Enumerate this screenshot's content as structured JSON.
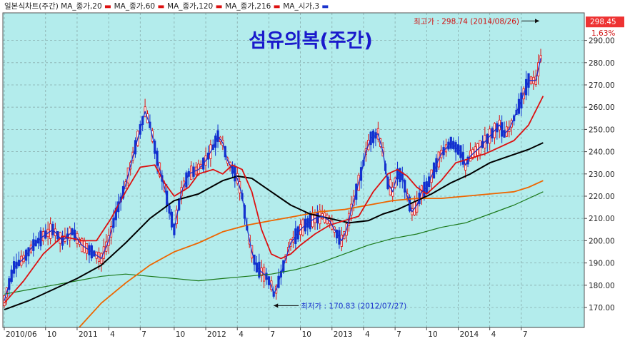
{
  "chart_data": {
    "type": "line",
    "title": "섬유의복(주간)",
    "legend": {
      "placement": "top-left",
      "prefix": "일본식차트(주간)",
      "items": [
        {
          "label": "MA_종가,20",
          "color": "#dd1111"
        },
        {
          "label": "MA_종가,60",
          "color": "#dd1111"
        },
        {
          "label": "MA_종가,120",
          "color": "#dd1111"
        },
        {
          "label": "MA_종가,216",
          "color": "#dd1111"
        },
        {
          "label": "MA_시가,3",
          "color": "#1a33cc"
        }
      ]
    },
    "x_ticks": [
      {
        "label": "2010/06",
        "t": 0
      },
      {
        "label": "10",
        "t": 17
      },
      {
        "label": "2011",
        "t": 30
      },
      {
        "label": "4",
        "t": 43
      },
      {
        "label": "7",
        "t": 56
      },
      {
        "label": "10",
        "t": 70
      },
      {
        "label": "2012",
        "t": 83
      },
      {
        "label": "4",
        "t": 96
      },
      {
        "label": "7",
        "t": 109
      },
      {
        "label": "10",
        "t": 122
      },
      {
        "label": "2013",
        "t": 135
      },
      {
        "label": "4",
        "t": 148
      },
      {
        "label": "7",
        "t": 161
      },
      {
        "label": "10",
        "t": 174
      },
      {
        "label": "2014",
        "t": 187
      },
      {
        "label": "4",
        "t": 200
      },
      {
        "label": "7",
        "t": 213
      }
    ],
    "y_ticks": [
      170,
      180,
      190,
      200,
      210,
      220,
      230,
      240,
      250,
      260,
      270,
      280,
      290
    ],
    "y_tick_labels": [
      "170.00",
      "180.00",
      "190.00",
      "200.00",
      "210.00",
      "220.00",
      "230.00",
      "240.00",
      "250.00",
      "260.00",
      "270.00",
      "280.00",
      "290.00"
    ],
    "ylim": [
      165,
      301
    ],
    "xlim": [
      0,
      236
    ],
    "grid": true,
    "series": [
      {
        "key": "ma3",
        "color": "#1a33cc",
        "width": 1.3,
        "points": [
          [
            0,
            173
          ],
          [
            4,
            188
          ],
          [
            8,
            192
          ],
          [
            12,
            198
          ],
          [
            16,
            202
          ],
          [
            20,
            205
          ],
          [
            24,
            200
          ],
          [
            28,
            204
          ],
          [
            32,
            198
          ],
          [
            36,
            195
          ],
          [
            40,
            192
          ],
          [
            43,
            200
          ],
          [
            46,
            212
          ],
          [
            50,
            225
          ],
          [
            53,
            238
          ],
          [
            56,
            250
          ],
          [
            58,
            258
          ],
          [
            60,
            252
          ],
          [
            62,
            242
          ],
          [
            64,
            232
          ],
          [
            66,
            224
          ],
          [
            68,
            214
          ],
          [
            70,
            205
          ],
          [
            73,
            222
          ],
          [
            76,
            230
          ],
          [
            80,
            232
          ],
          [
            83,
            236
          ],
          [
            86,
            242
          ],
          [
            88,
            247
          ],
          [
            90,
            244
          ],
          [
            92,
            236
          ],
          [
            94,
            232
          ],
          [
            96,
            228
          ],
          [
            98,
            220
          ],
          [
            100,
            206
          ],
          [
            102,
            195
          ],
          [
            104,
            188
          ],
          [
            106,
            186
          ],
          [
            108,
            184
          ],
          [
            110,
            180
          ],
          [
            111,
            176
          ],
          [
            112,
            178
          ],
          [
            114,
            185
          ],
          [
            116,
            192
          ],
          [
            118,
            199
          ],
          [
            122,
            205
          ],
          [
            125,
            208
          ],
          [
            128,
            210
          ],
          [
            131,
            211
          ],
          [
            134,
            209
          ],
          [
            137,
            203
          ],
          [
            139,
            200
          ],
          [
            141,
            205
          ],
          [
            143,
            214
          ],
          [
            145,
            222
          ],
          [
            147,
            230
          ],
          [
            149,
            240
          ],
          [
            151,
            246
          ],
          [
            154,
            248
          ],
          [
            156,
            240
          ],
          [
            158,
            226
          ],
          [
            160,
            222
          ],
          [
            162,
            230
          ],
          [
            164,
            229
          ],
          [
            166,
            220
          ],
          [
            168,
            213
          ],
          [
            170,
            216
          ],
          [
            172,
            222
          ],
          [
            174,
            224
          ],
          [
            176,
            229
          ],
          [
            180,
            239
          ],
          [
            184,
            244
          ],
          [
            188,
            240
          ],
          [
            190,
            234
          ],
          [
            192,
            238
          ],
          [
            196,
            242
          ],
          [
            200,
            247
          ],
          [
            204,
            252
          ],
          [
            206,
            248
          ],
          [
            208,
            250
          ],
          [
            210,
            255
          ],
          [
            213,
            263
          ],
          [
            216,
            272
          ],
          [
            219,
            272
          ],
          [
            221,
            282
          ]
        ]
      },
      {
        "key": "ma20",
        "color": "#dd1111",
        "width": 1.8,
        "points": [
          [
            0,
            172
          ],
          [
            8,
            182
          ],
          [
            16,
            194
          ],
          [
            24,
            202
          ],
          [
            32,
            200
          ],
          [
            38,
            200
          ],
          [
            44,
            210
          ],
          [
            50,
            222
          ],
          [
            56,
            233
          ],
          [
            62,
            234
          ],
          [
            66,
            226
          ],
          [
            70,
            220
          ],
          [
            76,
            224
          ],
          [
            80,
            230
          ],
          [
            86,
            232
          ],
          [
            90,
            230
          ],
          [
            94,
            234
          ],
          [
            98,
            232
          ],
          [
            102,
            222
          ],
          [
            106,
            205
          ],
          [
            110,
            194
          ],
          [
            114,
            192
          ],
          [
            118,
            194
          ],
          [
            122,
            198
          ],
          [
            128,
            203
          ],
          [
            134,
            207
          ],
          [
            140,
            209
          ],
          [
            146,
            211
          ],
          [
            152,
            222
          ],
          [
            158,
            230
          ],
          [
            162,
            232
          ],
          [
            166,
            229
          ],
          [
            170,
            224
          ],
          [
            174,
            221
          ],
          [
            180,
            227
          ],
          [
            186,
            235
          ],
          [
            192,
            237
          ],
          [
            198,
            239
          ],
          [
            204,
            242
          ],
          [
            210,
            245
          ],
          [
            216,
            252
          ],
          [
            222,
            265
          ]
        ]
      },
      {
        "key": "ma60",
        "color": "#000000",
        "width": 2.0,
        "points": [
          [
            0,
            169
          ],
          [
            10,
            173
          ],
          [
            20,
            178
          ],
          [
            30,
            183
          ],
          [
            40,
            189
          ],
          [
            50,
            199
          ],
          [
            60,
            210
          ],
          [
            70,
            218
          ],
          [
            80,
            221
          ],
          [
            90,
            227
          ],
          [
            96,
            229
          ],
          [
            102,
            228
          ],
          [
            110,
            222
          ],
          [
            118,
            216
          ],
          [
            126,
            212
          ],
          [
            134,
            210
          ],
          [
            142,
            208
          ],
          [
            150,
            209
          ],
          [
            156,
            212
          ],
          [
            162,
            214
          ],
          [
            168,
            217
          ],
          [
            176,
            221
          ],
          [
            184,
            226
          ],
          [
            192,
            230
          ],
          [
            200,
            235
          ],
          [
            208,
            238
          ],
          [
            216,
            241
          ],
          [
            222,
            244
          ]
        ]
      },
      {
        "key": "ma120",
        "color": "#ee6600",
        "width": 1.8,
        "points": [
          [
            30,
            160
          ],
          [
            40,
            172
          ],
          [
            50,
            181
          ],
          [
            60,
            189
          ],
          [
            70,
            195
          ],
          [
            80,
            199
          ],
          [
            90,
            204
          ],
          [
            100,
            207
          ],
          [
            110,
            209
          ],
          [
            120,
            211
          ],
          [
            130,
            213
          ],
          [
            140,
            214
          ],
          [
            150,
            216
          ],
          [
            160,
            218
          ],
          [
            170,
            219
          ],
          [
            180,
            219
          ],
          [
            190,
            220
          ],
          [
            200,
            221
          ],
          [
            210,
            222
          ],
          [
            216,
            224
          ],
          [
            222,
            227
          ]
        ]
      },
      {
        "key": "ma216",
        "color": "#1c7a1c",
        "width": 1.2,
        "points": [
          [
            0,
            176
          ],
          [
            10,
            178
          ],
          [
            20,
            180
          ],
          [
            30,
            182
          ],
          [
            40,
            184
          ],
          [
            50,
            185
          ],
          [
            60,
            184
          ],
          [
            70,
            183
          ],
          [
            80,
            182
          ],
          [
            90,
            183
          ],
          [
            100,
            184
          ],
          [
            110,
            185
          ],
          [
            120,
            187
          ],
          [
            130,
            190
          ],
          [
            140,
            194
          ],
          [
            150,
            198
          ],
          [
            160,
            201
          ],
          [
            170,
            203
          ],
          [
            180,
            206
          ],
          [
            190,
            208
          ],
          [
            200,
            212
          ],
          [
            210,
            216
          ],
          [
            222,
            222
          ]
        ]
      }
    ],
    "high_annotation": {
      "text": "최고가 : 298.74 (2014/08/26)",
      "t": 221,
      "value": 298.74
    },
    "low_annotation": {
      "text": "최저가 : 170.83 (2012/07/27)",
      "t": 111,
      "value": 170.83
    },
    "current_price": {
      "label": "298.45",
      "value": 298.45,
      "change": "1.63%"
    }
  }
}
